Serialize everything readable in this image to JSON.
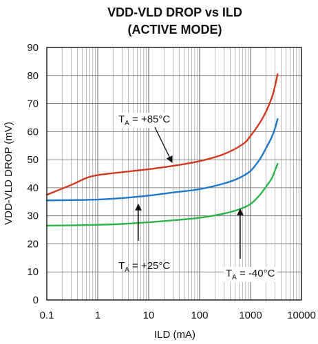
{
  "chart_data": {
    "type": "line",
    "title": "VDD-VLD DROP vs ILD",
    "subtitle": "(ACTIVE MODE)",
    "xlabel": "ILD (mA)",
    "ylabel": "VDD-VLD DROP (mV)",
    "x_scale": "log",
    "xlim": [
      0.1,
      10000
    ],
    "ylim": [
      0,
      90
    ],
    "x_ticks": [
      "0.1",
      "1",
      "10",
      "100",
      "1000",
      "10000"
    ],
    "y_ticks": [
      "0",
      "10",
      "20",
      "30",
      "40",
      "50",
      "60",
      "70",
      "80",
      "90"
    ],
    "grid": true,
    "legend": "none",
    "series": [
      {
        "name": "TA = +85°C",
        "color": "#d0391f",
        "x": [
          0.1,
          0.3,
          0.6,
          1,
          2,
          5,
          10,
          30,
          100,
          300,
          700,
          1000,
          1500,
          2000,
          2600,
          3000,
          3400
        ],
        "values": [
          37.5,
          41,
          43.5,
          44.5,
          45.2,
          46,
          46.6,
          47.8,
          49.5,
          52,
          55.5,
          58.5,
          63,
          67,
          72,
          76,
          80.5
        ]
      },
      {
        "name": "TA = +25°C",
        "color": "#1f78c8",
        "x": [
          0.1,
          0.3,
          1,
          3,
          10,
          30,
          100,
          300,
          600,
          1000,
          1500,
          2000,
          2600,
          3000,
          3400
        ],
        "values": [
          35.5,
          35.6,
          35.8,
          36.3,
          37.2,
          38.3,
          39.5,
          41.5,
          43.5,
          46,
          50,
          54,
          58,
          61,
          64.5
        ]
      },
      {
        "name": "TA = -40°C",
        "color": "#2db34a",
        "x": [
          0.1,
          0.3,
          1,
          3,
          10,
          30,
          100,
          300,
          600,
          1000,
          1500,
          2000,
          2600,
          3000,
          3400
        ],
        "values": [
          26.5,
          26.6,
          26.8,
          27.1,
          27.7,
          28.4,
          29.3,
          30.8,
          32.3,
          34.2,
          37.3,
          40.3,
          43.3,
          46,
          48.5
        ]
      }
    ],
    "annotations": [
      {
        "label_main": "T",
        "label_sub": "A",
        "label_rest": " = +85°C",
        "series": "TA = +85°C"
      },
      {
        "label_main": "T",
        "label_sub": "A",
        "label_rest": " = +25°C",
        "series": "TA = +25°C"
      },
      {
        "label_main": "T",
        "label_sub": "A",
        "label_rest": " = -40°C",
        "series": "TA = -40°C"
      }
    ]
  }
}
